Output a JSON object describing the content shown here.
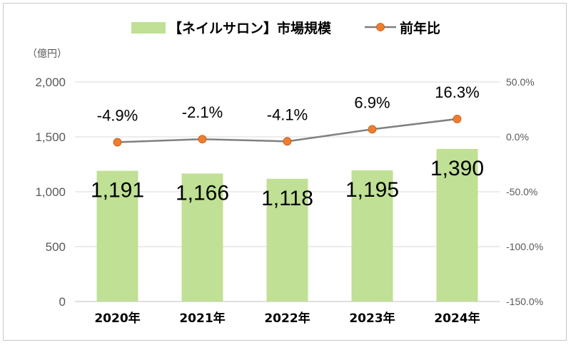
{
  "chart_data": {
    "type": "bar",
    "categories": [
      "2020年",
      "2021年",
      "2022年",
      "2023年",
      "2024年"
    ],
    "series": [
      {
        "name": "【ネイルサロン】市場規模",
        "type": "bar",
        "axis": "left",
        "values": [
          1191,
          1166,
          1118,
          1195,
          1390
        ],
        "labels": [
          "1,191",
          "1,166",
          "1,118",
          "1,195",
          "1,390"
        ],
        "color": "#bfe095"
      },
      {
        "name": "前年比",
        "type": "line",
        "axis": "right",
        "values": [
          -4.9,
          -2.1,
          -4.1,
          6.9,
          16.3
        ],
        "labels": [
          "-4.9%",
          "-2.1%",
          "-4.1%",
          "6.9%",
          "16.3%"
        ],
        "color": "#808080",
        "marker_color": "#ed7d31"
      }
    ],
    "yleft": {
      "unit": "（億円）",
      "ylim": [
        0,
        2000
      ],
      "ticks": [
        0,
        500,
        1000,
        1500,
        2000
      ],
      "tick_labels": [
        "0",
        "500",
        "1,000",
        "1,500",
        "2,000"
      ]
    },
    "yright": {
      "ylim": [
        -150,
        50
      ],
      "ticks": [
        -150,
        -100,
        -50,
        0,
        50
      ],
      "tick_labels": [
        "-150.0%",
        "-100.0%",
        "-50.0%",
        "0.0%",
        "50.0%"
      ]
    },
    "grid": true,
    "legend_position": "top"
  }
}
